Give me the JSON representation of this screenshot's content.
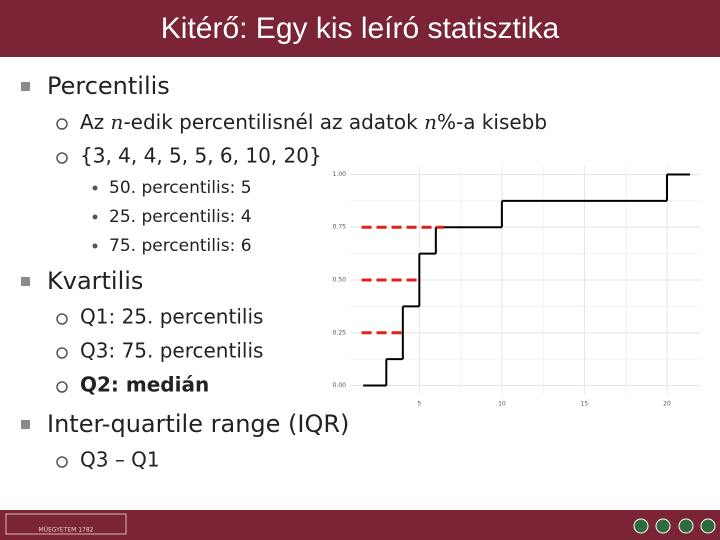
{
  "title": "Kitérő: Egy kis leíró statisztika",
  "items": [
    {
      "level": 1,
      "text": "Percentilis"
    },
    {
      "level": 2,
      "runs": [
        {
          "text": "Az "
        },
        {
          "text": "n",
          "italic": true
        },
        {
          "text": "-edik percentilisnél az adatok "
        },
        {
          "text": "n",
          "italic": true
        },
        {
          "text": "%-a kisebb"
        }
      ]
    },
    {
      "level": 2,
      "text": "{3, 4, 4, 5, 5, 6, 10, 20}"
    },
    {
      "level": 3,
      "text": "50. percentilis: 5"
    },
    {
      "level": 3,
      "text": "25. percentilis: 4"
    },
    {
      "level": 3,
      "text": "75. percentilis: 6"
    },
    {
      "level": 1,
      "text": "Kvartilis"
    },
    {
      "level": 2,
      "text": "Q1: 25. percentilis"
    },
    {
      "level": 2,
      "text": "Q3: 75. percentilis"
    },
    {
      "level": 2,
      "text": "Q2: medián",
      "bold": true
    },
    {
      "level": 1,
      "text": "Inter-quartile range (IQR)"
    },
    {
      "level": 2,
      "text": "Q3 – Q1"
    }
  ],
  "footer_text": "MŰEGYETEM 1782",
  "chart_data": {
    "type": "step",
    "edges": [
      1.6,
      3,
      4,
      5,
      6,
      10,
      20,
      21.4
    ],
    "values": [
      0,
      0.125,
      0.375,
      0.625,
      0.75,
      0.875,
      1
    ],
    "color": "#000000",
    "xlim": [
      0.8,
      22
    ],
    "ylim": [
      -0.04,
      1.04
    ],
    "xticks": [
      5,
      10,
      15,
      20
    ],
    "yticks": [
      {
        "value": 0,
        "label": "0.00"
      },
      {
        "value": 0.25,
        "label": "0.25"
      },
      {
        "value": 0.5,
        "label": "0.50"
      },
      {
        "value": 0.75,
        "label": "0.75"
      },
      {
        "value": 1,
        "label": "1.00"
      }
    ],
    "grid": true,
    "hlines": [
      {
        "y": 0.25,
        "x": [
          1.5,
          4
        ]
      },
      {
        "y": 0.5,
        "x": [
          1.5,
          5
        ]
      },
      {
        "y": 0.75,
        "x": [
          1.5,
          6.5
        ]
      }
    ],
    "hline_color": "#e02020"
  }
}
